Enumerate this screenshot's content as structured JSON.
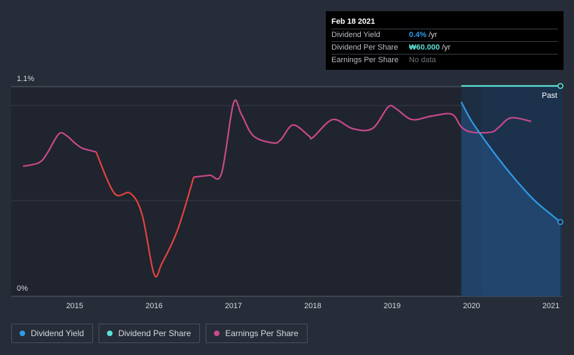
{
  "chart_data": {
    "type": "line",
    "y_tick_labels": [
      "0%",
      "1.1%"
    ],
    "x_tick_labels": [
      "2015",
      "2016",
      "2017",
      "2018",
      "2019",
      "2020",
      "2021"
    ],
    "x_range": [
      2014.2,
      2021.15
    ],
    "past_label": "Past",
    "past_region_start": 2019.87,
    "series": [
      {
        "name": "Dividend Yield",
        "color": "#2f9be8",
        "unit": "%",
        "y_range": [
          0,
          1.1
        ],
        "points": [
          [
            2019.87,
            1.02
          ],
          [
            2020.0,
            0.92
          ],
          [
            2020.2,
            0.8
          ],
          [
            2020.4,
            0.69
          ],
          [
            2020.6,
            0.59
          ],
          [
            2020.8,
            0.5
          ],
          [
            2021.0,
            0.43
          ],
          [
            2021.12,
            0.39
          ]
        ]
      },
      {
        "name": "Dividend Per Share",
        "color": "#5ce1d6",
        "unit": "₩",
        "points": [
          [
            2019.87,
            60
          ],
          [
            2021.12,
            60
          ]
        ]
      },
      {
        "name": "Earnings Per Share",
        "color": "#c8498a",
        "declining_color": "#e2433f",
        "relative_scale": [
          0,
          100
        ],
        "points": [
          [
            2014.35,
            65
          ],
          [
            2014.55,
            67
          ],
          [
            2014.65,
            72
          ],
          [
            2014.8,
            83
          ],
          [
            2014.9,
            82
          ],
          [
            2015.0,
            78
          ],
          [
            2015.1,
            75
          ],
          [
            2015.27,
            73
          ],
          [
            2015.5,
            50
          ],
          [
            2015.7,
            50
          ],
          [
            2015.85,
            38
          ],
          [
            2016.0,
            5
          ],
          [
            2016.1,
            11
          ],
          [
            2016.3,
            30
          ],
          [
            2016.5,
            59
          ],
          [
            2016.7,
            60
          ],
          [
            2016.85,
            61
          ],
          [
            2017.0,
            100
          ],
          [
            2017.1,
            94
          ],
          [
            2017.25,
            82
          ],
          [
            2017.5,
            78
          ],
          [
            2017.6,
            80
          ],
          [
            2017.75,
            88
          ],
          [
            2017.95,
            82
          ],
          [
            2018.0,
            81
          ],
          [
            2018.25,
            91
          ],
          [
            2018.5,
            86
          ],
          [
            2018.75,
            86
          ],
          [
            2018.95,
            98
          ],
          [
            2019.05,
            97
          ],
          [
            2019.25,
            91
          ],
          [
            2019.5,
            93
          ],
          [
            2019.75,
            94
          ],
          [
            2019.87,
            87
          ],
          [
            2020.0,
            84
          ],
          [
            2020.25,
            84
          ],
          [
            2020.35,
            87
          ],
          [
            2020.5,
            92
          ],
          [
            2020.75,
            90
          ]
        ]
      }
    ]
  },
  "tooltip": {
    "date": "Feb 18 2021",
    "rows": [
      {
        "label": "Dividend Yield",
        "value": "0.4%",
        "unit": "/yr"
      },
      {
        "label": "Dividend Per Share",
        "value": "₩60.000",
        "unit": "/yr"
      },
      {
        "label": "Earnings Per Share",
        "nodata": "No data"
      }
    ]
  },
  "legend": [
    {
      "label": "Dividend Yield",
      "color": "#2f9be8"
    },
    {
      "label": "Dividend Per Share",
      "color": "#5ce1d6"
    },
    {
      "label": "Earnings Per Share",
      "color": "#c8498a"
    }
  ]
}
